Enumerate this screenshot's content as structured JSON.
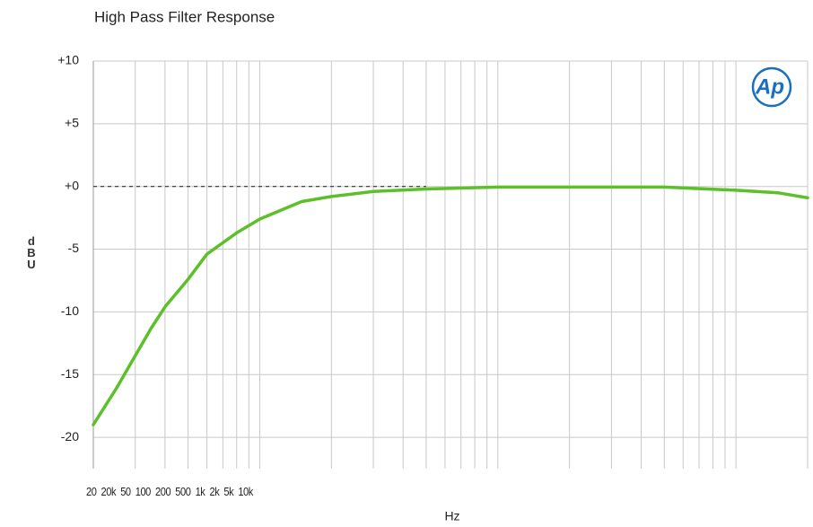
{
  "chart_data": {
    "type": "line",
    "title": "High Pass Filter Response",
    "y_label": "dBU",
    "x_label": "Hz",
    "logo": "Ap",
    "x_labels": [
      "20",
      "20k",
      "50",
      "100",
      "200",
      "500",
      "1k",
      "2k",
      "5k",
      "10k"
    ],
    "x": [
      20,
      25,
      30,
      35,
      40,
      50,
      60,
      80,
      100,
      150,
      200,
      300,
      500,
      1000,
      2000,
      5000,
      10000,
      15000,
      20000
    ],
    "values": [
      -19,
      -16.1,
      -13.5,
      -11.3,
      -9.6,
      -7.4,
      -5.4,
      -3.7,
      -2.6,
      -1.2,
      -0.8,
      -0.4,
      -0.2,
      -0.05,
      -0.05,
      -0.05,
      -0.3,
      -0.5,
      -0.9
    ],
    "color": "#5cc02a",
    "xlim": [
      20,
      20000
    ],
    "x_log": true,
    "xticks": [
      20,
      30,
      40,
      50,
      60,
      70,
      80,
      90,
      100,
      200,
      300,
      400,
      500,
      600,
      700,
      800,
      900,
      1000,
      2000,
      3000,
      4000,
      5000,
      6000,
      7000,
      8000,
      9000,
      10000,
      20000
    ],
    "ylim": [
      -22.5,
      10
    ],
    "yticks": [
      {
        "value": 10,
        "label": "+10"
      },
      {
        "value": 5,
        "label": "+5"
      },
      {
        "value": 0,
        "label": "+0"
      },
      -5,
      -10,
      -15,
      -20
    ],
    "grid": true,
    "reference_line": {
      "value": 0,
      "x_end": 500
    }
  }
}
